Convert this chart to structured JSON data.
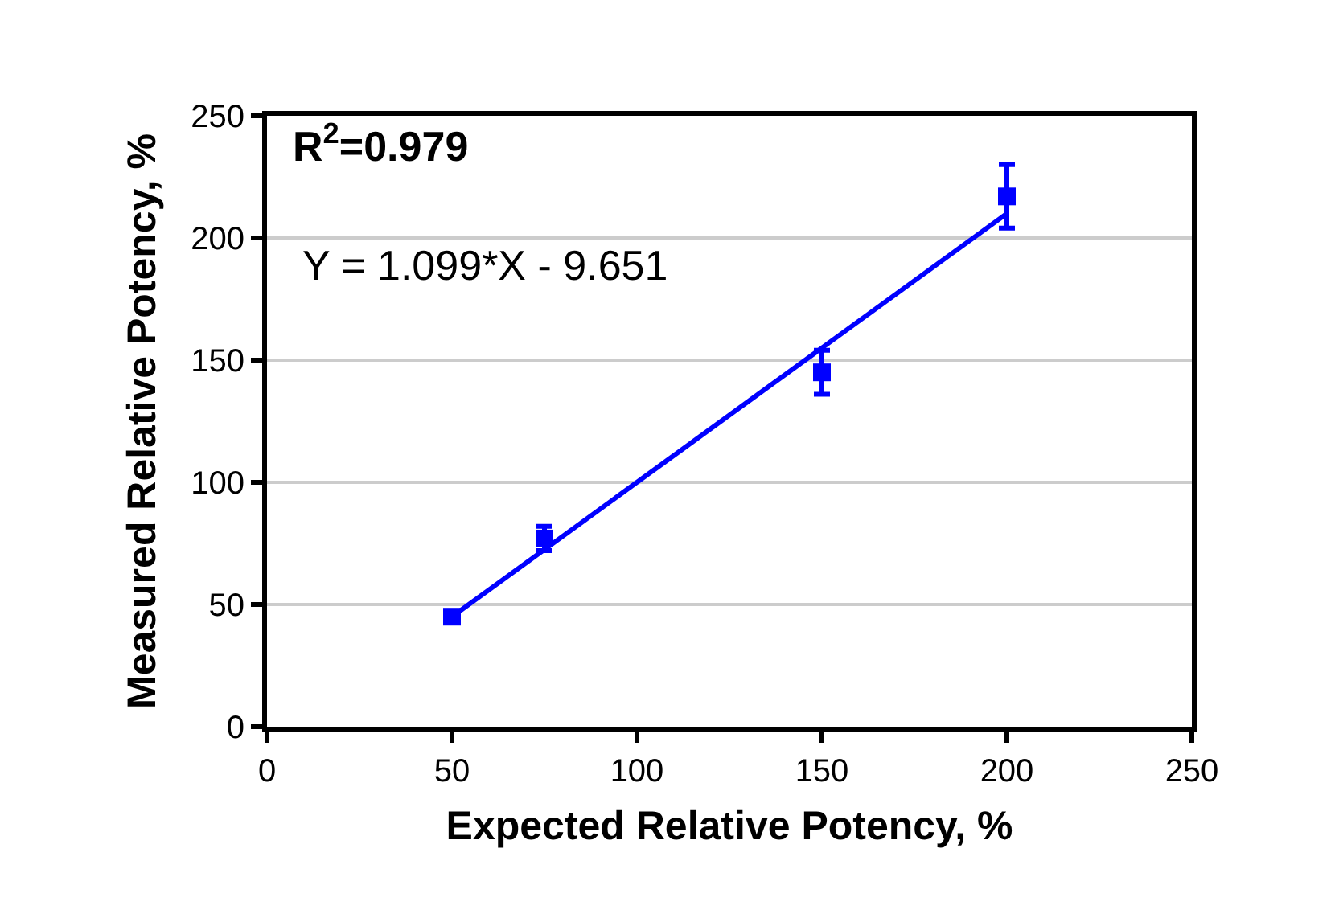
{
  "chart_data": {
    "type": "scatter",
    "xlabel": "Expected Relative Potency, %",
    "ylabel": "Measured Relative Potency, %",
    "x": [
      50,
      75,
      150,
      200
    ],
    "series": [
      {
        "color": "#0000ff",
        "values": [
          45,
          77,
          145,
          217
        ],
        "errors": [
          null,
          5,
          9,
          13
        ],
        "marker": "square"
      },
      {
        "type": "line",
        "color": "#0000ff",
        "x": [
          50,
          200
        ],
        "values": [
          45,
          210
        ],
        "marker": "none",
        "line_style": "solid"
      }
    ],
    "annotations": [
      "R$^{2}$=0.979",
      "Y = 1.099*X - 9.651"
    ],
    "xlim": [
      0,
      250
    ],
    "xticks": [
      0,
      50,
      100,
      150,
      200,
      250
    ],
    "ylim": [
      0,
      250
    ],
    "yticks": [
      0,
      50,
      100,
      150,
      200,
      250
    ],
    "grid": "y"
  }
}
